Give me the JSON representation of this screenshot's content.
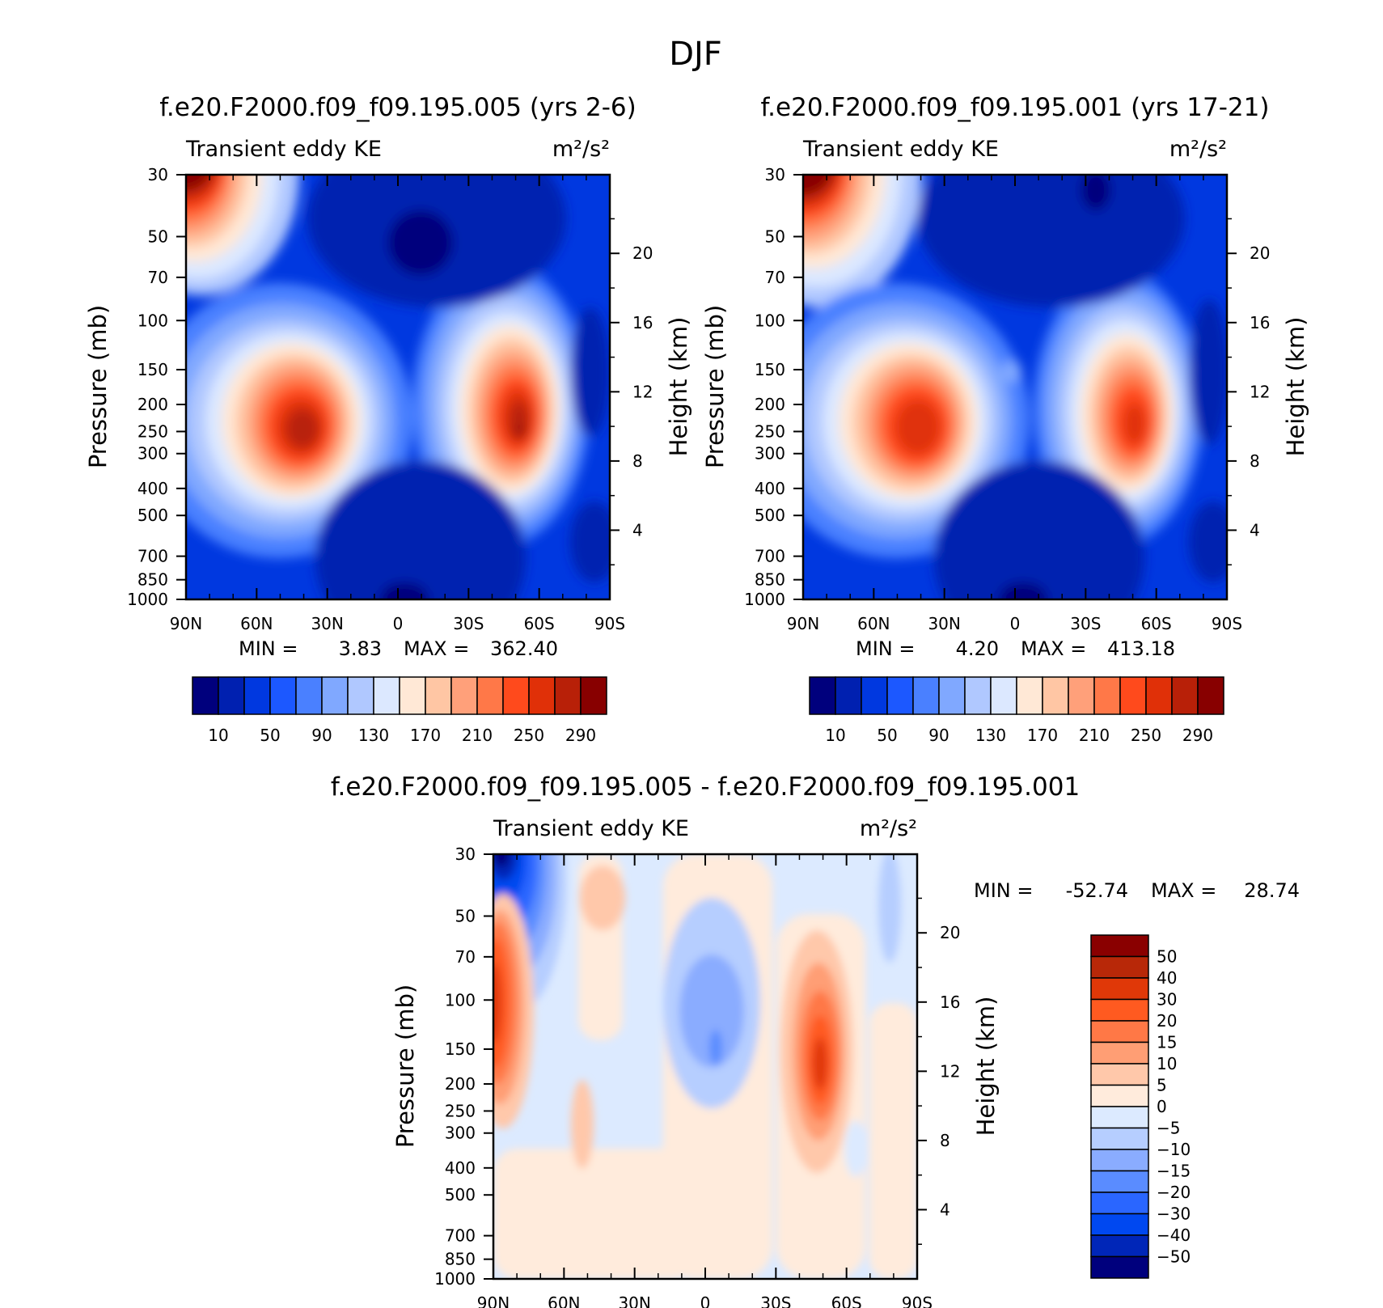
{
  "figure": {
    "title": "DJF"
  },
  "colors": {
    "abs_levels": [
      "#00007d",
      "#0020b0",
      "#0038e0",
      "#1c58ff",
      "#4a80ff",
      "#80a8ff",
      "#b0c8ff",
      "#dce8ff",
      "#ffe8d6",
      "#ffc6a4",
      "#ffa07a",
      "#ff7848",
      "#ff4a1c",
      "#e03008",
      "#b82008",
      "#880000"
    ],
    "diff_levels": [
      "#00007d",
      "#0026b8",
      "#0048f0",
      "#2a66ff",
      "#5a8cff",
      "#8aacff",
      "#b6ceff",
      "#dceaff",
      "#ffebdc",
      "#ffc8aa",
      "#ff9e74",
      "#ff7846",
      "#ff5a20",
      "#e03808",
      "#b82808",
      "#8a0000"
    ]
  },
  "chart_data": [
    {
      "type": "heatmap",
      "title": "f.e20.F2000.f09_f09.195.005 (yrs 2-6)",
      "subtitle_left": "Transient eddy KE",
      "units": "m²/s²",
      "xlabel": "",
      "ylabel": "Pressure (mb)",
      "y2label": "Height (km)",
      "x_ticks": [
        "90N",
        "60N",
        "30N",
        "0",
        "30S",
        "60S",
        "90S"
      ],
      "y_ticks": [
        "30",
        "50",
        "70",
        "100",
        "150",
        "200",
        "250",
        "300",
        "400",
        "500",
        "700",
        "850",
        "1000"
      ],
      "y2_ticks": [
        "20",
        "16",
        "12",
        "8",
        "4"
      ],
      "x_range": [
        90,
        -90
      ],
      "y_range": [
        30,
        1000
      ],
      "y_scale": "log (inverted)",
      "min_label": "MIN =",
      "min_value": "3.83",
      "max_label": "MAX =",
      "max_value": "362.40",
      "colorbar_levels": [
        10,
        30,
        50,
        70,
        90,
        110,
        130,
        150,
        170,
        190,
        210,
        230,
        250,
        270,
        290
      ],
      "colorbar_labels": [
        "10",
        "50",
        "90",
        "130",
        "170",
        "210",
        "250",
        "290"
      ],
      "features": [
        {
          "name": "NH stratospheric polar maximum",
          "lat": 80,
          "pressure": 30,
          "value": 300
        },
        {
          "name": "NH subtropical jet maximum",
          "lat": 40,
          "pressure": 270,
          "value": 270
        },
        {
          "name": "SH storm-track jet maximum",
          "lat": -50,
          "pressure": 260,
          "value": 330
        }
      ]
    },
    {
      "type": "heatmap",
      "title": "f.e20.F2000.f09_f09.195.001 (yrs 17-21)",
      "subtitle_left": "Transient eddy KE",
      "units": "m²/s²",
      "xlabel": "",
      "ylabel": "Pressure (mb)",
      "y2label": "Height (km)",
      "x_ticks": [
        "90N",
        "60N",
        "30N",
        "0",
        "30S",
        "60S",
        "90S"
      ],
      "y_ticks": [
        "30",
        "50",
        "70",
        "100",
        "150",
        "200",
        "250",
        "300",
        "400",
        "500",
        "700",
        "850",
        "1000"
      ],
      "y2_ticks": [
        "20",
        "16",
        "12",
        "8",
        "4"
      ],
      "x_range": [
        90,
        -90
      ],
      "y_range": [
        30,
        1000
      ],
      "y_scale": "log (inverted)",
      "min_label": "MIN =",
      "min_value": "4.20",
      "max_label": "MAX =",
      "max_value": "413.18",
      "colorbar_levels": [
        10,
        30,
        50,
        70,
        90,
        110,
        130,
        150,
        170,
        190,
        210,
        230,
        250,
        270,
        290
      ],
      "colorbar_labels": [
        "10",
        "50",
        "90",
        "130",
        "170",
        "210",
        "250",
        "290"
      ],
      "features": [
        {
          "name": "NH stratospheric polar maximum",
          "lat": 80,
          "pressure": 30,
          "value": 330
        },
        {
          "name": "NH subtropical jet maximum",
          "lat": 40,
          "pressure": 270,
          "value": 250
        },
        {
          "name": "SH storm-track jet maximum",
          "lat": -50,
          "pressure": 260,
          "value": 280
        }
      ]
    },
    {
      "type": "heatmap",
      "title": "f.e20.F2000.f09_f09.195.005 - f.e20.F2000.f09_f09.195.001",
      "subtitle_left": "Transient eddy KE",
      "units": "m²/s²",
      "xlabel": "",
      "ylabel": "Pressure (mb)",
      "y2label": "Height (km)",
      "x_ticks": [
        "90N",
        "60N",
        "30N",
        "0",
        "30S",
        "60S",
        "90S"
      ],
      "y_ticks": [
        "30",
        "50",
        "70",
        "100",
        "150",
        "200",
        "250",
        "300",
        "400",
        "500",
        "700",
        "850",
        "1000"
      ],
      "y2_ticks": [
        "20",
        "16",
        "12",
        "8",
        "4"
      ],
      "x_range": [
        90,
        -90
      ],
      "y_range": [
        30,
        1000
      ],
      "y_scale": "log (inverted)",
      "min_label": "MIN =",
      "min_value": "-52.74",
      "max_label": "MAX =",
      "max_value": "28.74",
      "colorbar_levels": [
        -50,
        -40,
        -30,
        -20,
        -15,
        -10,
        -5,
        0,
        5,
        10,
        15,
        20,
        30,
        40,
        50
      ],
      "colorbar_labels": [
        "50",
        "40",
        "30",
        "20",
        "15",
        "10",
        "5",
        "0",
        "−5",
        "−10",
        "−15",
        "−20",
        "−30",
        "−40",
        "−50"
      ],
      "features": [
        {
          "name": "NH polar stratosphere negative",
          "lat": 82,
          "pressure": 33,
          "value": -50
        },
        {
          "name": "NH polar column positive",
          "lat": 85,
          "pressure": 140,
          "value": 25
        },
        {
          "name": "SH jet positive",
          "lat": -48,
          "pressure": 200,
          "value": 28
        },
        {
          "name": "equatorial negative",
          "lat": 5,
          "pressure": 150,
          "value": -12
        }
      ]
    }
  ]
}
